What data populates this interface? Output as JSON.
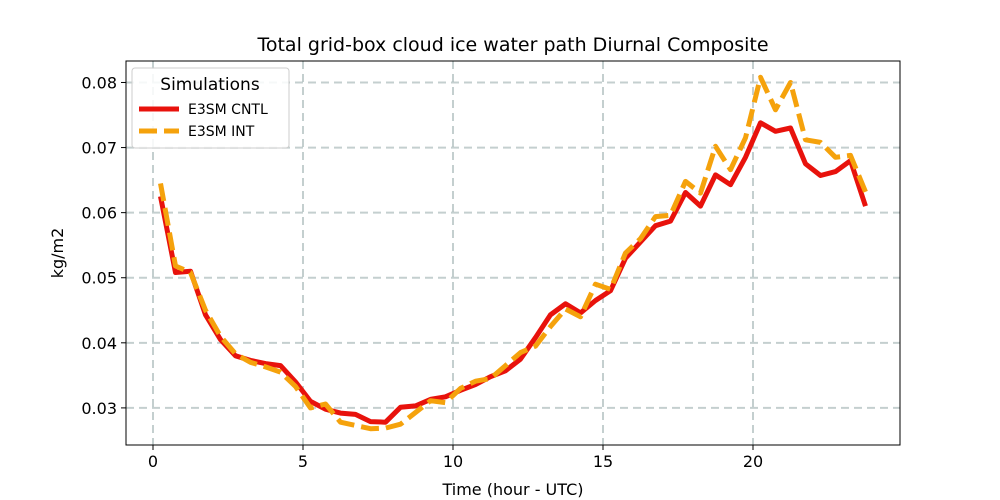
{
  "chart_data": {
    "type": "line",
    "title": "Total grid-box cloud ice water path Diurnal Composite",
    "xlabel": "Time (hour - UTC)",
    "ylabel": "kg/m2",
    "xlim": [
      -0.9,
      24.9
    ],
    "ylim": [
      0.0243,
      0.0833
    ],
    "xticks": [
      0,
      5,
      10,
      15,
      20
    ],
    "xtick_labels": [
      "0",
      "5",
      "10",
      "15",
      "20"
    ],
    "yticks": [
      0.03,
      0.04,
      0.05,
      0.06,
      0.07,
      0.08
    ],
    "ytick_labels": [
      "0.03",
      "0.04",
      "0.05",
      "0.06",
      "0.07",
      "0.08"
    ],
    "grid": true,
    "legend": {
      "title": "Simulations",
      "placement": "top-left"
    },
    "x": [
      0.25,
      0.75,
      1.25,
      1.75,
      2.25,
      2.75,
      3.25,
      3.75,
      4.25,
      4.75,
      5.25,
      5.75,
      6.25,
      6.75,
      7.25,
      7.75,
      8.25,
      8.75,
      9.25,
      9.75,
      10.25,
      10.75,
      11.25,
      11.75,
      12.25,
      12.75,
      13.25,
      13.75,
      14.25,
      14.75,
      15.25,
      15.75,
      16.25,
      16.75,
      17.25,
      17.75,
      18.25,
      18.75,
      19.25,
      19.75,
      20.25,
      20.75,
      21.25,
      21.75,
      22.25,
      22.75,
      23.25,
      23.75
    ],
    "series": [
      {
        "name": "E3SM CNTL",
        "color": "#e8120c",
        "dash": "solid",
        "values": [
          0.0625,
          0.0508,
          0.051,
          0.0443,
          0.0405,
          0.038,
          0.0373,
          0.0368,
          0.0365,
          0.034,
          0.031,
          0.0298,
          0.0292,
          0.029,
          0.0279,
          0.0278,
          0.0301,
          0.0303,
          0.0313,
          0.0317,
          0.0327,
          0.0336,
          0.0348,
          0.0357,
          0.0375,
          0.0408,
          0.0443,
          0.046,
          0.0446,
          0.0465,
          0.048,
          0.053,
          0.0555,
          0.058,
          0.0587,
          0.0631,
          0.061,
          0.0658,
          0.0643,
          0.0685,
          0.0738,
          0.0725,
          0.073,
          0.0675,
          0.0657,
          0.0663,
          0.068,
          0.061
        ]
      },
      {
        "name": "E3SM INT",
        "color": "#f5a20c",
        "dash": "dashed",
        "values": [
          0.0645,
          0.0518,
          0.0508,
          0.045,
          0.041,
          0.0383,
          0.037,
          0.0363,
          0.0355,
          0.0333,
          0.03,
          0.0306,
          0.0278,
          0.0273,
          0.0268,
          0.0269,
          0.0275,
          0.0293,
          0.0311,
          0.0308,
          0.033,
          0.0341,
          0.0345,
          0.0365,
          0.0385,
          0.0395,
          0.0425,
          0.0452,
          0.044,
          0.049,
          0.0482,
          0.0538,
          0.056,
          0.0594,
          0.0596,
          0.0648,
          0.063,
          0.0702,
          0.0666,
          0.0715,
          0.0808,
          0.0758,
          0.08,
          0.0712,
          0.0708,
          0.0685,
          0.0688,
          0.0632
        ]
      }
    ]
  }
}
